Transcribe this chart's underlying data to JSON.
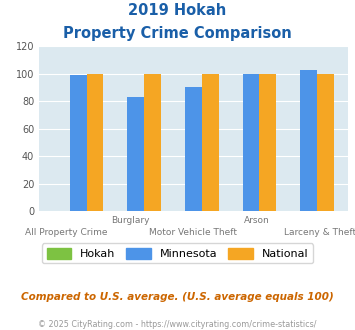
{
  "title_line1": "2019 Hokah",
  "title_line2": "Property Crime Comparison",
  "groups": [
    "All Property Crime",
    "Burglary",
    "Motor Vehicle Theft",
    "Arson",
    "Larceny & Theft"
  ],
  "hokah": [
    0,
    0,
    0,
    0,
    0
  ],
  "minnesota": [
    99,
    83,
    90,
    100,
    103
  ],
  "national": [
    100,
    100,
    100,
    100,
    100
  ],
  "bar_color_hokah": "#7dc242",
  "bar_color_minnesota": "#4d94e8",
  "bar_color_national": "#f5a623",
  "ylim": [
    0,
    120
  ],
  "yticks": [
    0,
    20,
    40,
    60,
    80,
    100,
    120
  ],
  "bg_color": "#dce9f0",
  "title_color": "#1a5fa8",
  "footer_text": "Compared to U.S. average. (U.S. average equals 100)",
  "footer_color": "#cc6600",
  "credit_text": "© 2025 CityRating.com - https://www.cityrating.com/crime-statistics/",
  "credit_color": "#999999",
  "legend_labels": [
    "Hokah",
    "Minnesota",
    "National"
  ],
  "top_xlabels": [
    "",
    "Burglary",
    "",
    "Arson",
    ""
  ],
  "bottom_xlabels": [
    "All Property Crime",
    "",
    "Motor Vehicle Theft",
    "",
    "Larceny & Theft"
  ]
}
